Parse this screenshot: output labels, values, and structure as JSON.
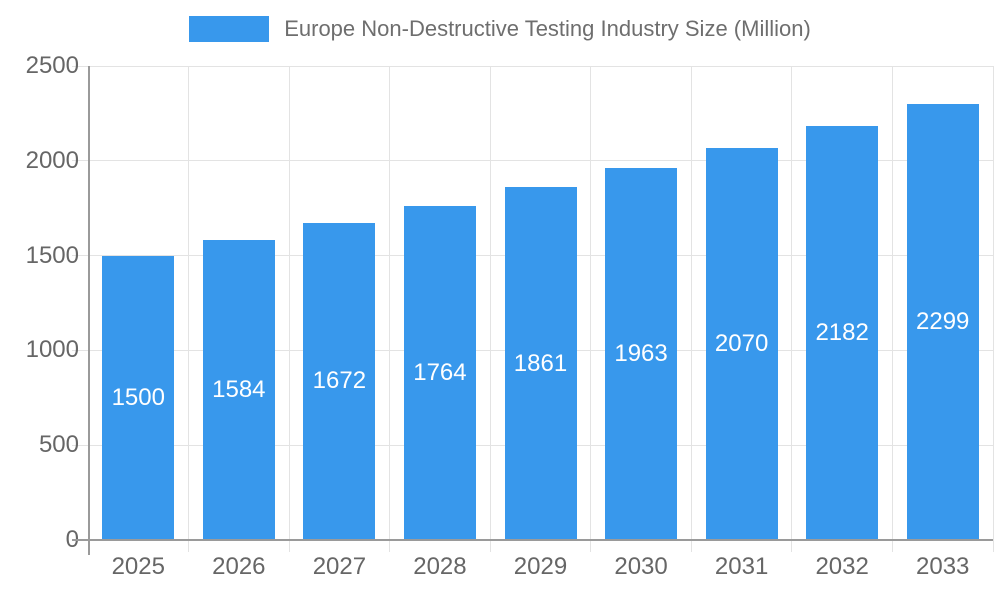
{
  "chart_data": {
    "type": "bar",
    "title": "Europe Non-Destructive Testing Industry Size (Million)",
    "categories": [
      "2025",
      "2026",
      "2027",
      "2028",
      "2029",
      "2030",
      "2031",
      "2032",
      "2033"
    ],
    "values": [
      1500,
      1584,
      1672,
      1764,
      1861,
      1963,
      2070,
      2182,
      2299
    ],
    "xlabel": "",
    "ylabel": "",
    "ylim": [
      0,
      2500
    ],
    "yticks": [
      0,
      500,
      1000,
      1500,
      2000,
      2500
    ],
    "grid": true,
    "legend_position": "top",
    "bar_color": "#3898EC",
    "value_label_color": "#FFFFFF",
    "axis_text_color": "#666666",
    "title_text_color": "#6E6E6E",
    "gridline_color": "#E3E3E3",
    "axis_line_color": "#9A9A9A",
    "background_color": "#FFFFFF"
  }
}
